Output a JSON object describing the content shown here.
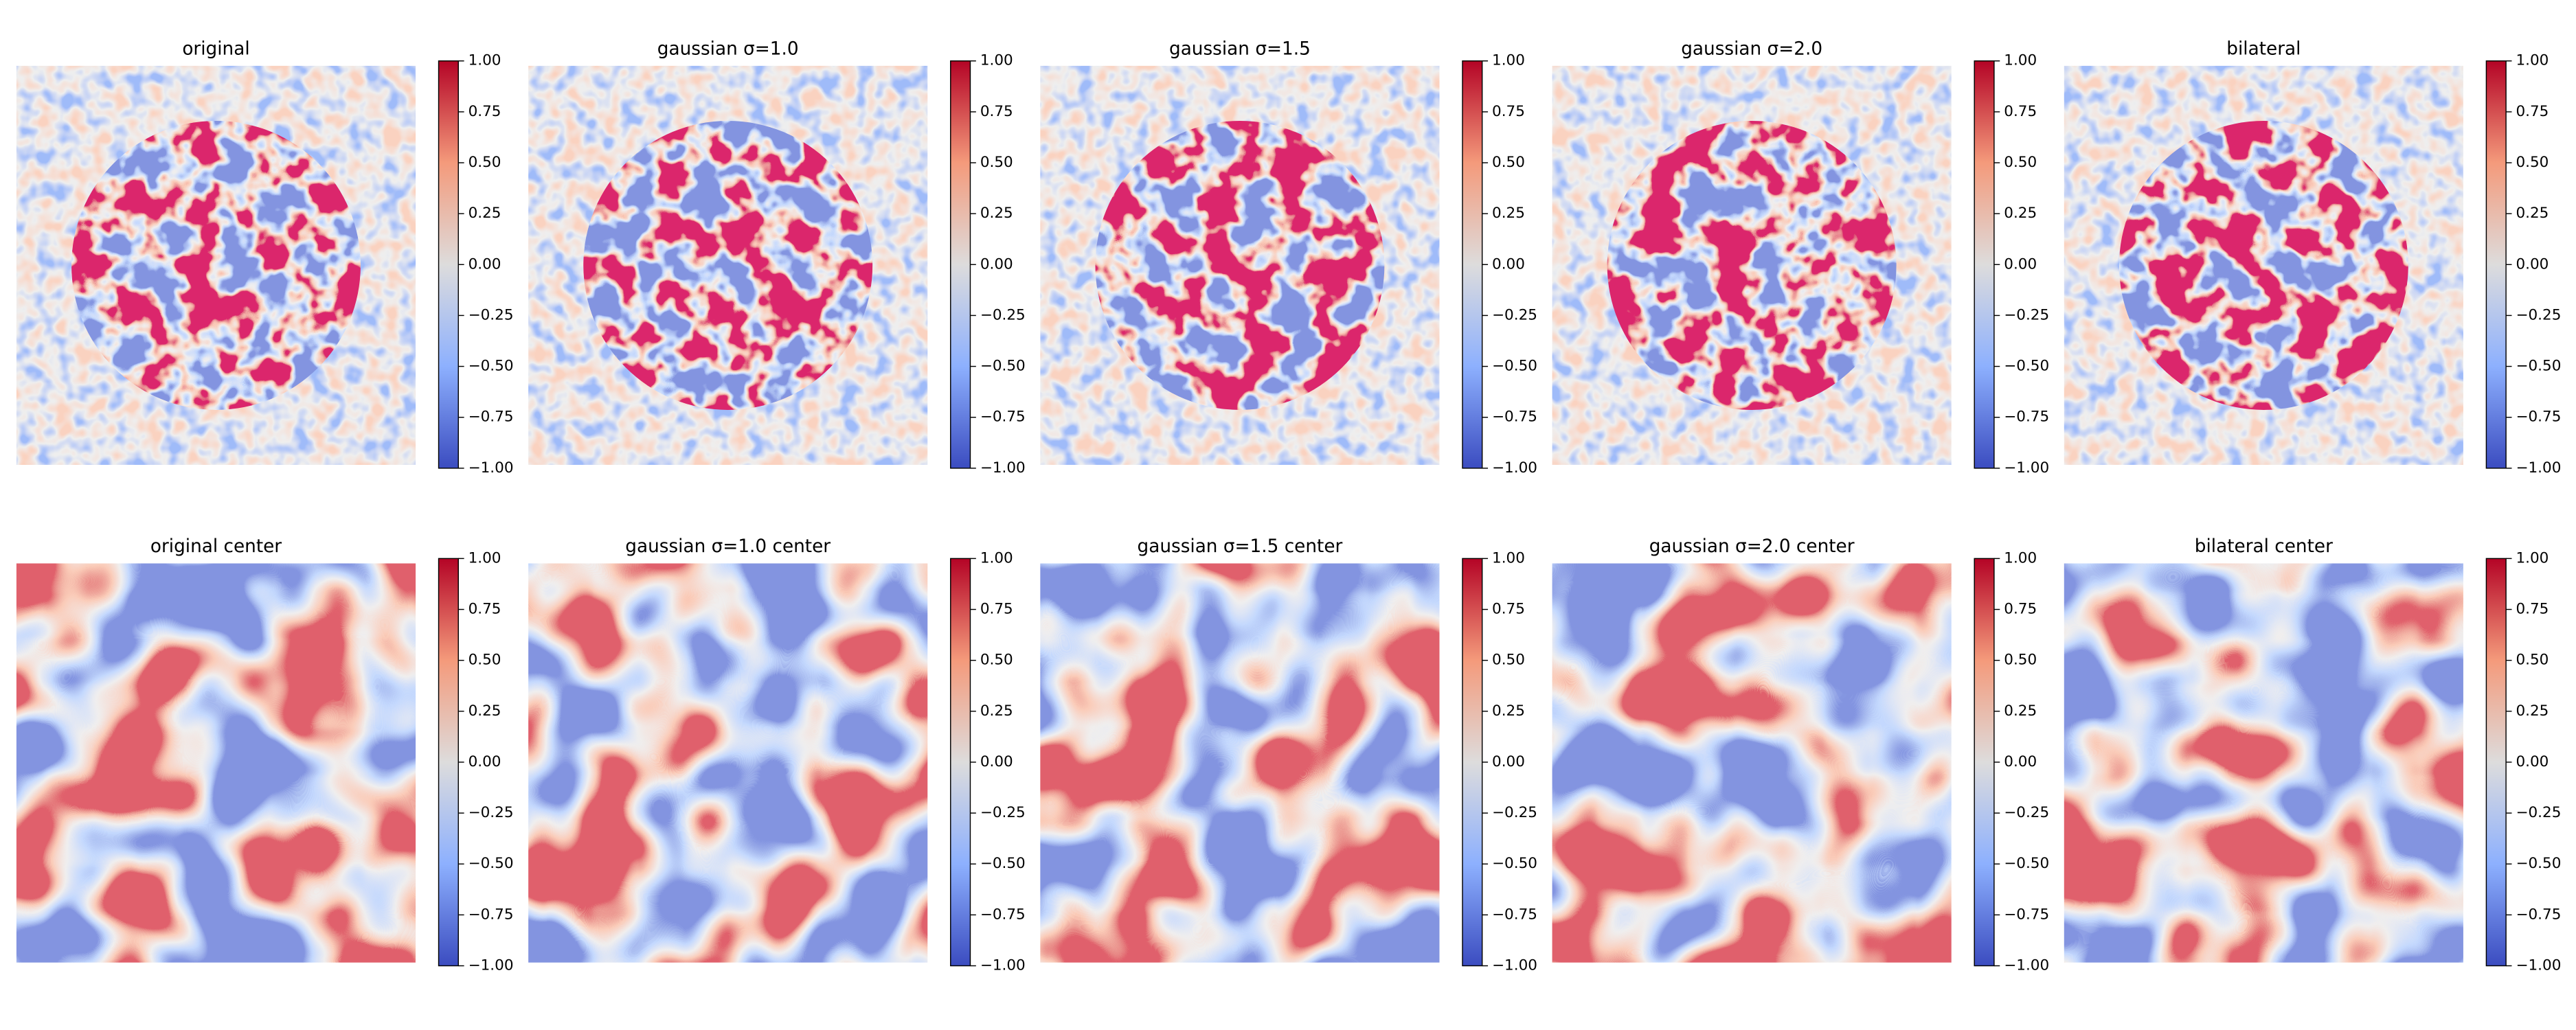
{
  "chart_data": [
    {
      "type": "heatmap",
      "title": "original",
      "cmap": "coolwarm",
      "vlim": [
        -1,
        1
      ],
      "cticks": [
        {
          "value": -1,
          "label": "−1.00"
        },
        {
          "value": -0.75,
          "label": "−0.75"
        },
        {
          "value": -0.5,
          "label": "−0.50"
        },
        {
          "value": -0.25,
          "label": "−0.25"
        },
        {
          "value": 0,
          "label": "0.00"
        },
        {
          "value": 0.25,
          "label": "0.25"
        },
        {
          "value": 0.5,
          "label": "0.50"
        },
        {
          "value": 0.75,
          "label": "0.75"
        },
        {
          "value": 1,
          "label": "1.00"
        }
      ]
    },
    {
      "type": "heatmap",
      "title": "gaussian σ=1.0",
      "cmap": "coolwarm",
      "vlim": [
        -1,
        1
      ],
      "cticks": [
        {
          "value": -1,
          "label": "−1.00"
        },
        {
          "value": -0.75,
          "label": "−0.75"
        },
        {
          "value": -0.5,
          "label": "−0.50"
        },
        {
          "value": -0.25,
          "label": "−0.25"
        },
        {
          "value": 0,
          "label": "0.00"
        },
        {
          "value": 0.25,
          "label": "0.25"
        },
        {
          "value": 0.5,
          "label": "0.50"
        },
        {
          "value": 0.75,
          "label": "0.75"
        },
        {
          "value": 1,
          "label": "1.00"
        }
      ]
    },
    {
      "type": "heatmap",
      "title": "gaussian σ=1.5",
      "cmap": "coolwarm",
      "vlim": [
        -1,
        1
      ],
      "cticks": [
        {
          "value": -1,
          "label": "−1.00"
        },
        {
          "value": -0.75,
          "label": "−0.75"
        },
        {
          "value": -0.5,
          "label": "−0.50"
        },
        {
          "value": -0.25,
          "label": "−0.25"
        },
        {
          "value": 0,
          "label": "0.00"
        },
        {
          "value": 0.25,
          "label": "0.25"
        },
        {
          "value": 0.5,
          "label": "0.50"
        },
        {
          "value": 0.75,
          "label": "0.75"
        },
        {
          "value": 1,
          "label": "1.00"
        }
      ]
    },
    {
      "type": "heatmap",
      "title": "gaussian σ=2.0",
      "cmap": "coolwarm",
      "vlim": [
        -1,
        1
      ],
      "cticks": [
        {
          "value": -1,
          "label": "−1.00"
        },
        {
          "value": -0.75,
          "label": "−0.75"
        },
        {
          "value": -0.5,
          "label": "−0.50"
        },
        {
          "value": -0.25,
          "label": "−0.25"
        },
        {
          "value": 0,
          "label": "0.00"
        },
        {
          "value": 0.25,
          "label": "0.25"
        },
        {
          "value": 0.5,
          "label": "0.50"
        },
        {
          "value": 0.75,
          "label": "0.75"
        },
        {
          "value": 1,
          "label": "1.00"
        }
      ]
    },
    {
      "type": "heatmap",
      "title": "bilateral",
      "cmap": "coolwarm",
      "vlim": [
        -1,
        1
      ],
      "cticks": [
        {
          "value": -1,
          "label": "−1.00"
        },
        {
          "value": -0.75,
          "label": "−0.75"
        },
        {
          "value": -0.5,
          "label": "−0.50"
        },
        {
          "value": -0.25,
          "label": "−0.25"
        },
        {
          "value": 0,
          "label": "0.00"
        },
        {
          "value": 0.25,
          "label": "0.25"
        },
        {
          "value": 0.5,
          "label": "0.50"
        },
        {
          "value": 0.75,
          "label": "0.75"
        },
        {
          "value": 1,
          "label": "1.00"
        }
      ]
    },
    {
      "type": "heatmap",
      "title": "original center",
      "cmap": "coolwarm",
      "vlim": [
        -1,
        1
      ],
      "cticks": [
        {
          "value": -1,
          "label": "−1.00"
        },
        {
          "value": -0.75,
          "label": "−0.75"
        },
        {
          "value": -0.5,
          "label": "−0.50"
        },
        {
          "value": -0.25,
          "label": "−0.25"
        },
        {
          "value": 0,
          "label": "0.00"
        },
        {
          "value": 0.25,
          "label": "0.25"
        },
        {
          "value": 0.5,
          "label": "0.50"
        },
        {
          "value": 0.75,
          "label": "0.75"
        },
        {
          "value": 1,
          "label": "1.00"
        }
      ]
    },
    {
      "type": "heatmap",
      "title": "gaussian σ=1.0 center",
      "cmap": "coolwarm",
      "vlim": [
        -1,
        1
      ],
      "cticks": [
        {
          "value": -1,
          "label": "−1.00"
        },
        {
          "value": -0.75,
          "label": "−0.75"
        },
        {
          "value": -0.5,
          "label": "−0.50"
        },
        {
          "value": -0.25,
          "label": "−0.25"
        },
        {
          "value": 0,
          "label": "0.00"
        },
        {
          "value": 0.25,
          "label": "0.25"
        },
        {
          "value": 0.5,
          "label": "0.50"
        },
        {
          "value": 0.75,
          "label": "0.75"
        },
        {
          "value": 1,
          "label": "1.00"
        }
      ]
    },
    {
      "type": "heatmap",
      "title": "gaussian σ=1.5 center",
      "cmap": "coolwarm",
      "vlim": [
        -1,
        1
      ],
      "cticks": [
        {
          "value": -1,
          "label": "−1.00"
        },
        {
          "value": -0.75,
          "label": "−0.75"
        },
        {
          "value": -0.5,
          "label": "−0.50"
        },
        {
          "value": -0.25,
          "label": "−0.25"
        },
        {
          "value": 0,
          "label": "0.00"
        },
        {
          "value": 0.25,
          "label": "0.25"
        },
        {
          "value": 0.5,
          "label": "0.50"
        },
        {
          "value": 0.75,
          "label": "0.75"
        },
        {
          "value": 1,
          "label": "1.00"
        }
      ]
    },
    {
      "type": "heatmap",
      "title": "gaussian σ=2.0 center",
      "cmap": "coolwarm",
      "vlim": [
        -1,
        1
      ],
      "cticks": [
        {
          "value": -1,
          "label": "−1.00"
        },
        {
          "value": -0.75,
          "label": "−0.75"
        },
        {
          "value": -0.5,
          "label": "−0.50"
        },
        {
          "value": -0.25,
          "label": "−0.25"
        },
        {
          "value": 0,
          "label": "0.00"
        },
        {
          "value": 0.25,
          "label": "0.25"
        },
        {
          "value": 0.5,
          "label": "0.50"
        },
        {
          "value": 0.75,
          "label": "0.75"
        },
        {
          "value": 1,
          "label": "1.00"
        }
      ]
    },
    {
      "type": "heatmap",
      "title": "bilateral center",
      "cmap": "coolwarm",
      "vlim": [
        -1,
        1
      ],
      "cticks": [
        {
          "value": -1,
          "label": "−1.00"
        },
        {
          "value": -0.75,
          "label": "−0.75"
        },
        {
          "value": -0.5,
          "label": "−0.50"
        },
        {
          "value": -0.25,
          "label": "−0.25"
        },
        {
          "value": 0,
          "label": "0.00"
        },
        {
          "value": 0.25,
          "label": "0.25"
        },
        {
          "value": 0.5,
          "label": "0.50"
        },
        {
          "value": 0.75,
          "label": "0.75"
        },
        {
          "value": 1,
          "label": "1.00"
        }
      ]
    }
  ]
}
